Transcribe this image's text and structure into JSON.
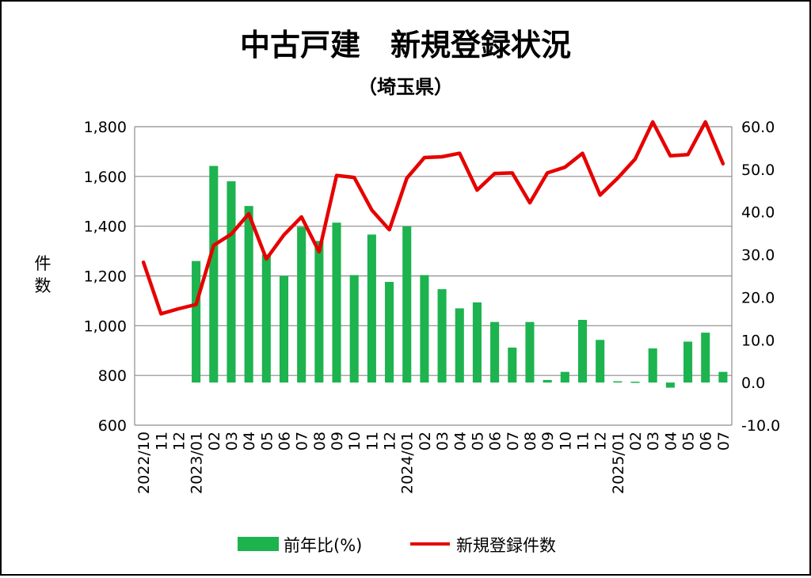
{
  "chart_data": {
    "type": "bar+line",
    "title": "中古戸建　新規登録状況",
    "subtitle": "（埼玉県）",
    "ylabel_left_chars": [
      "件",
      "数"
    ],
    "left_axis": {
      "min": 600,
      "max": 1800,
      "step": 200,
      "ticks": [
        "600",
        "800",
        "1,000",
        "1,200",
        "1,400",
        "1,600",
        "1,800"
      ]
    },
    "right_axis": {
      "min": -10,
      "max": 60,
      "step": 10,
      "ticks": [
        "-10.0",
        "0.0",
        "10.0",
        "20.0",
        "30.0",
        "40.0",
        "50.0",
        "60.0"
      ],
      "negative_color": "#e00000"
    },
    "categories": [
      "2022/10",
      "11",
      "12",
      "2023/01",
      "02",
      "03",
      "04",
      "05",
      "06",
      "07",
      "08",
      "09",
      "10",
      "11",
      "12",
      "2024/01",
      "02",
      "03",
      "04",
      "05",
      "06",
      "07",
      "08",
      "09",
      "10",
      "11",
      "12",
      "2025/01",
      "02",
      "03",
      "04",
      "05",
      "06",
      "07"
    ],
    "series": [
      {
        "name": "前年比(%)",
        "type": "bar",
        "axis": "right",
        "color": "#1db34f",
        "values": [
          null,
          null,
          null,
          28.5,
          50.8,
          47.2,
          41.4,
          30.0,
          25.0,
          36.5,
          33.2,
          37.5,
          25.2,
          34.7,
          23.6,
          36.6,
          25.2,
          21.9,
          17.4,
          18.8,
          14.2,
          8.2,
          14.2,
          0.6,
          2.5,
          14.7,
          10.0,
          0.3,
          0.2,
          8.0,
          -1.2,
          9.6,
          11.7,
          2.5
        ]
      },
      {
        "name": "新規登録件数",
        "type": "line",
        "axis": "left",
        "color": "#e60000",
        "values": [
          1255,
          1048,
          1068,
          1085,
          1323,
          1368,
          1450,
          1268,
          1365,
          1437,
          1297,
          1604,
          1596,
          1465,
          1386,
          1593,
          1676,
          1679,
          1693,
          1545,
          1612,
          1614,
          1494,
          1614,
          1637,
          1693,
          1525,
          1593,
          1670,
          1819,
          1683,
          1688,
          1819,
          1651
        ]
      }
    ],
    "grid": true,
    "legend_position": "bottom"
  }
}
